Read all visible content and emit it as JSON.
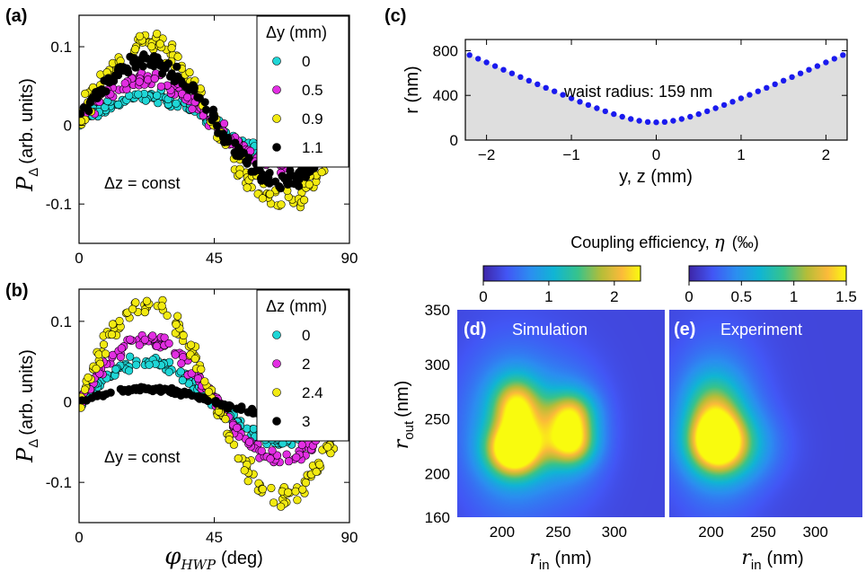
{
  "colors": {
    "cyan": "#1fd6d6",
    "magenta": "#e22ee2",
    "yellow": "#f2ea11",
    "black": "#000000",
    "blue": "#1a1aee",
    "shade": "#dedede"
  },
  "colorbar_title": {
    "pre": "Coupling efficiency, ",
    "sym": "η",
    "post": "(‰)"
  },
  "chart_data": [
    {
      "id": "a",
      "panel_label": "(a)",
      "type": "scatter",
      "xlabel": {
        "sym": "φ",
        "sub": "HWP",
        "unit": "(deg)"
      },
      "ylabel": {
        "sym": "P",
        "sub": "Δ",
        "unit": "(arb. units)"
      },
      "xlim": [
        0,
        90
      ],
      "ylim": [
        -0.15,
        0.14
      ],
      "xticks": [
        0,
        45,
        90
      ],
      "yticks": [
        -0.1,
        0,
        0.1
      ],
      "ytick_labels": [
        "-0.1",
        "0",
        "0.1"
      ],
      "annotation": "Δz = const",
      "legend": {
        "title": "Δy (mm)",
        "location": "top-right"
      },
      "series": [
        {
          "name": "0",
          "color": "cyan",
          "amp": 0.035,
          "offset": 0.002,
          "noise": 0.007
        },
        {
          "name": "0.5",
          "color": "magenta",
          "amp": 0.055,
          "offset": 0.004,
          "noise": 0.009
        },
        {
          "name": "0.9",
          "color": "yellow",
          "amp": 0.1,
          "offset": 0.004,
          "noise": 0.015
        },
        {
          "name": "1.1",
          "color": "black",
          "amp": 0.078,
          "offset": 0.006,
          "noise": 0.01
        }
      ]
    },
    {
      "id": "b",
      "panel_label": "(b)",
      "type": "scatter",
      "xlabel": {
        "sym": "φ",
        "sub": "HWP",
        "unit": "(deg)"
      },
      "ylabel": {
        "sym": "P",
        "sub": "Δ",
        "unit": "(arb. units)"
      },
      "xlim": [
        0,
        90
      ],
      "ylim": [
        -0.15,
        0.14
      ],
      "xticks": [
        0,
        45,
        90
      ],
      "yticks": [
        -0.1,
        0,
        0.1
      ],
      "ytick_labels": [
        "-0.1",
        "0",
        "0.1"
      ],
      "annotation": "Δy = const",
      "legend": {
        "title": "Δz (mm)",
        "location": "top-right"
      },
      "series": [
        {
          "name": "0",
          "color": "cyan",
          "amp": 0.05,
          "offset": 0.0,
          "noise": 0.007
        },
        {
          "name": "2",
          "color": "magenta",
          "amp": 0.075,
          "offset": 0.002,
          "noise": 0.009
        },
        {
          "name": "2.4",
          "color": "yellow",
          "amp": 0.12,
          "offset": 0.002,
          "noise": 0.014
        },
        {
          "name": "3",
          "color": "black",
          "amp": 0.016,
          "offset": 0.0,
          "noise": 0.0025
        }
      ]
    },
    {
      "id": "c",
      "panel_label": "(c)",
      "type": "scatter",
      "xlabel": "y, z  (mm)",
      "ylabel": "r  (nm)",
      "xlim": [
        -2.25,
        2.25
      ],
      "ylim": [
        0,
        900
      ],
      "xticks": [
        -2,
        -1,
        0,
        1,
        2
      ],
      "xtick_labels": [
        "−2",
        "−1",
        "0",
        "1",
        "2"
      ],
      "yticks": [
        0,
        400,
        800
      ],
      "annotation": "waist radius: 159 nm",
      "waist_nm": 159,
      "rayleigh_mm": 0.47,
      "x_step": 0.1,
      "color": "blue"
    },
    {
      "id": "d",
      "panel_label": "(d)",
      "type": "heatmap",
      "title": "Simulation",
      "xlabel": {
        "sym": "r",
        "sub": "in",
        "unit": "(nm)"
      },
      "ylabel": {
        "sym": "r",
        "sub": "out",
        "unit": "(nm)"
      },
      "xlim": [
        160,
        345
      ],
      "ylim": [
        160,
        350
      ],
      "xticks": [
        200,
        250,
        300
      ],
      "yticks": [
        160,
        200,
        250,
        300,
        350
      ],
      "colorbar": {
        "min": 0,
        "max": 2.4,
        "ticks": [
          0,
          1,
          2
        ]
      },
      "background": 0.25,
      "blobs": [
        {
          "x": 210,
          "y": 222,
          "sx": 16,
          "sy": 16,
          "a": 2.3
        },
        {
          "x": 212,
          "y": 262,
          "sx": 14,
          "sy": 18,
          "a": 1.4
        },
        {
          "x": 262,
          "y": 228,
          "sx": 14,
          "sy": 14,
          "a": 1.45
        },
        {
          "x": 262,
          "y": 255,
          "sx": 14,
          "sy": 14,
          "a": 1.2
        },
        {
          "x": 210,
          "y": 240,
          "sx": 30,
          "sy": 48,
          "a": 0.9
        },
        {
          "x": 262,
          "y": 240,
          "sx": 22,
          "sy": 38,
          "a": 0.55
        },
        {
          "x": 238,
          "y": 240,
          "sx": 18,
          "sy": 20,
          "a": 0.35
        }
      ]
    },
    {
      "id": "e",
      "panel_label": "(e)",
      "type": "heatmap",
      "title": "Experiment",
      "xlabel": {
        "sym": "r",
        "sub": "in",
        "unit": "(nm)"
      },
      "ylabel": {
        "sym": "r",
        "sub": "out",
        "unit": "(nm)"
      },
      "xlim": [
        160,
        345
      ],
      "ylim": [
        160,
        350
      ],
      "xticks": [
        200,
        250,
        300
      ],
      "colorbar": {
        "min": 0,
        "max": 1.5,
        "ticks": [
          0,
          0.5,
          1,
          1.5
        ]
      },
      "background": 0.15,
      "blobs": [
        {
          "x": 205,
          "y": 228,
          "sx": 18,
          "sy": 18,
          "a": 1.25
        },
        {
          "x": 202,
          "y": 260,
          "sx": 18,
          "sy": 22,
          "a": 0.55
        },
        {
          "x": 225,
          "y": 225,
          "sx": 28,
          "sy": 22,
          "a": 0.35
        },
        {
          "x": 205,
          "y": 245,
          "sx": 30,
          "sy": 50,
          "a": 0.45
        }
      ]
    }
  ]
}
